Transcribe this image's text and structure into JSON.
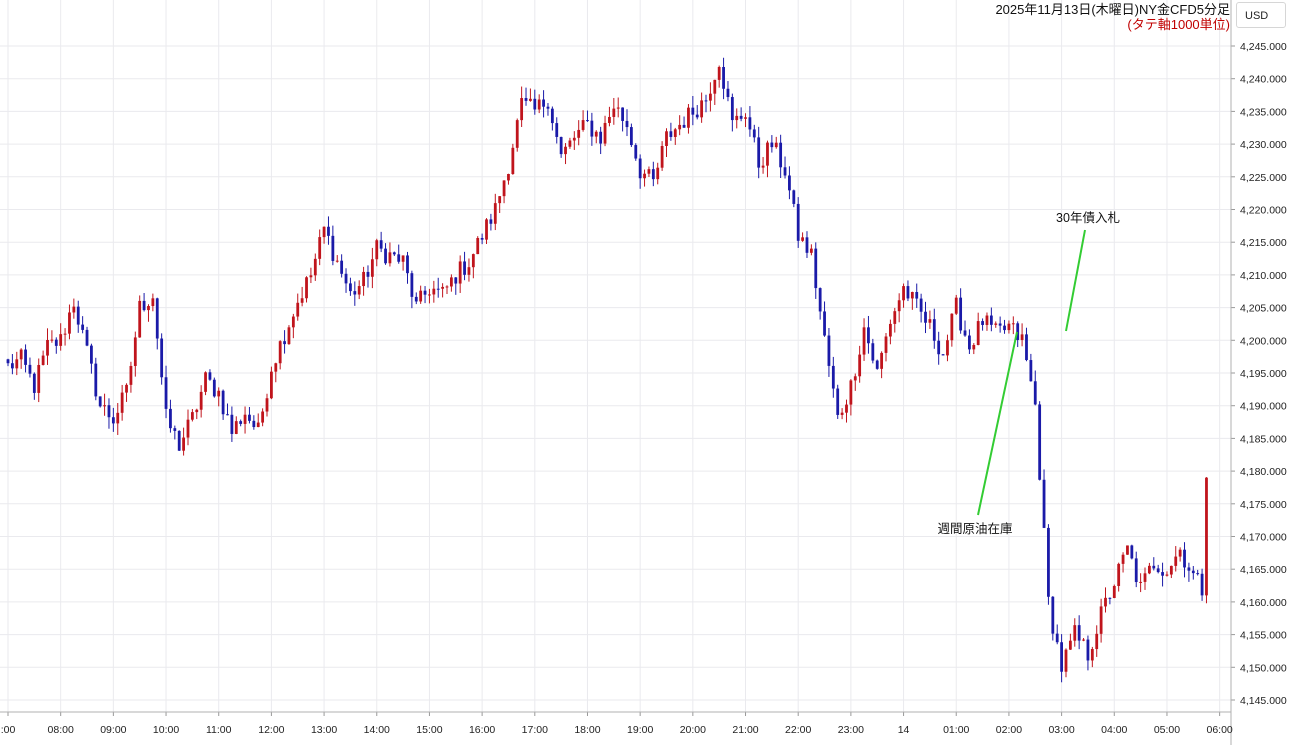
{
  "chart_data": {
    "type": "candlestick",
    "title": "2025年11月13日(木曜日)NY金CFD5分足",
    "subtitle": "(タテ軸1000単位)",
    "currency_label": "USD",
    "ylim": [
      4143,
      4249
    ],
    "y_ticks": [
      "4,145.000",
      "4,150.000",
      "4,155.000",
      "4,160.000",
      "4,165.000",
      "4,170.000",
      "4,175.000",
      "4,180.000",
      "4,185.000",
      "4,190.000",
      "4,195.000",
      "4,200.000",
      "4,205.000",
      "4,210.000",
      "4,215.000",
      "4,220.000",
      "4,225.000",
      "4,230.000",
      "4,235.000",
      "4,240.000",
      "4,245.000"
    ],
    "x_ticks": [
      ":00",
      "08:00",
      "09:00",
      "10:00",
      "11:00",
      "12:00",
      "13:00",
      "14:00",
      "15:00",
      "16:00",
      "17:00",
      "18:00",
      "19:00",
      "20:00",
      "21:00",
      "22:00",
      "23:00",
      "14",
      "01:00",
      "02:00",
      "03:00",
      "04:00",
      "05:00",
      "06:00"
    ],
    "up_color": "#c0141c",
    "down_color": "#1a1aa8",
    "grid": true,
    "close_path": [
      [
        0,
        4196
      ],
      [
        3,
        4197
      ],
      [
        6,
        4193
      ],
      [
        9,
        4199
      ],
      [
        12,
        4200
      ],
      [
        15,
        4206
      ],
      [
        18,
        4198
      ],
      [
        21,
        4190
      ],
      [
        24,
        4188
      ],
      [
        27,
        4192
      ],
      [
        30,
        4205
      ],
      [
        33,
        4207
      ],
      [
        36,
        4188
      ],
      [
        39,
        4184
      ],
      [
        42,
        4188
      ],
      [
        45,
        4194
      ],
      [
        48,
        4192
      ],
      [
        51,
        4186
      ],
      [
        54,
        4189
      ],
      [
        57,
        4186
      ],
      [
        60,
        4196
      ],
      [
        63,
        4201
      ],
      [
        66,
        4206
      ],
      [
        69,
        4210
      ],
      [
        72,
        4217
      ],
      [
        75,
        4212
      ],
      [
        78,
        4207
      ],
      [
        81,
        4209
      ],
      [
        84,
        4214
      ],
      [
        87,
        4213
      ],
      [
        90,
        4212
      ],
      [
        93,
        4205
      ],
      [
        96,
        4208
      ],
      [
        99,
        4207
      ],
      [
        102,
        4210
      ],
      [
        105,
        4212
      ],
      [
        108,
        4216
      ],
      [
        111,
        4220
      ],
      [
        114,
        4227
      ],
      [
        117,
        4236
      ],
      [
        120,
        4235
      ],
      [
        123,
        4237
      ],
      [
        126,
        4228
      ],
      [
        129,
        4231
      ],
      [
        132,
        4233
      ],
      [
        135,
        4231
      ],
      [
        138,
        4236
      ],
      [
        141,
        4233
      ],
      [
        144,
        4226
      ],
      [
        147,
        4224
      ],
      [
        150,
        4231
      ],
      [
        153,
        4233
      ],
      [
        156,
        4235
      ],
      [
        159,
        4237
      ],
      [
        162,
        4243
      ],
      [
        165,
        4233
      ],
      [
        168,
        4235
      ],
      [
        171,
        4227
      ],
      [
        174,
        4230
      ],
      [
        177,
        4226
      ],
      [
        180,
        4216
      ],
      [
        183,
        4213
      ],
      [
        186,
        4200
      ],
      [
        189,
        4188
      ],
      [
        192,
        4193
      ],
      [
        195,
        4202
      ],
      [
        198,
        4195
      ],
      [
        201,
        4203
      ],
      [
        204,
        4208
      ],
      [
        207,
        4205
      ],
      [
        210,
        4202
      ],
      [
        213,
        4198
      ],
      [
        216,
        4205
      ],
      [
        219,
        4199
      ],
      [
        222,
        4203
      ],
      [
        225,
        4201
      ],
      [
        228,
        4202
      ],
      [
        231,
        4200
      ],
      [
        234,
        4190
      ],
      [
        237,
        4160
      ],
      [
        240,
        4150
      ],
      [
        243,
        4155
      ],
      [
        246,
        4152
      ],
      [
        249,
        4158
      ],
      [
        252,
        4163
      ],
      [
        255,
        4168
      ],
      [
        258,
        4162
      ],
      [
        261,
        4166
      ],
      [
        264,
        4165
      ],
      [
        267,
        4168
      ],
      [
        270,
        4164
      ],
      [
        272,
        4162
      ],
      [
        273,
        4179
      ]
    ],
    "annotations": [
      {
        "text": "30年債入札"
      },
      {
        "text": "週間原油在庫"
      }
    ],
    "annotation_color": "#33cc33"
  }
}
